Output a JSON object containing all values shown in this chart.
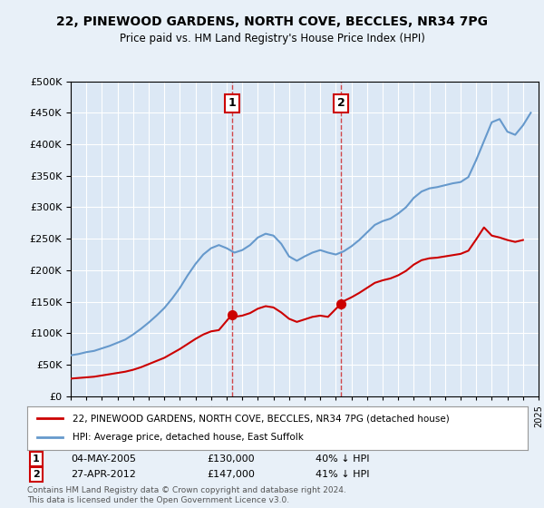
{
  "title": "22, PINEWOOD GARDENS, NORTH COVE, BECCLES, NR34 7PG",
  "subtitle": "Price paid vs. HM Land Registry's House Price Index (HPI)",
  "background_color": "#e8f0f8",
  "plot_bg_color": "#dce8f5",
  "hpi_years": [
    1995,
    1995.5,
    1996,
    1996.5,
    1997,
    1997.5,
    1998,
    1998.5,
    1999,
    1999.5,
    2000,
    2000.5,
    2001,
    2001.5,
    2002,
    2002.5,
    2003,
    2003.5,
    2004,
    2004.5,
    2005,
    2005.5,
    2006,
    2006.5,
    2007,
    2007.5,
    2008,
    2008.5,
    2009,
    2009.5,
    2010,
    2010.5,
    2011,
    2011.5,
    2012,
    2012.5,
    2013,
    2013.5,
    2014,
    2014.5,
    2015,
    2015.5,
    2016,
    2016.5,
    2017,
    2017.5,
    2018,
    2018.5,
    2019,
    2019.5,
    2020,
    2020.5,
    2021,
    2021.5,
    2022,
    2022.5,
    2023,
    2023.5,
    2024,
    2024.5
  ],
  "hpi_values": [
    65000,
    67000,
    70000,
    72000,
    76000,
    80000,
    85000,
    90000,
    98000,
    107000,
    117000,
    128000,
    140000,
    155000,
    172000,
    192000,
    210000,
    225000,
    235000,
    240000,
    235000,
    228000,
    232000,
    240000,
    252000,
    258000,
    255000,
    242000,
    222000,
    215000,
    222000,
    228000,
    232000,
    228000,
    225000,
    230000,
    238000,
    248000,
    260000,
    272000,
    278000,
    282000,
    290000,
    300000,
    315000,
    325000,
    330000,
    332000,
    335000,
    338000,
    340000,
    348000,
    375000,
    405000,
    435000,
    440000,
    420000,
    415000,
    430000,
    450000
  ],
  "property_years": [
    1995,
    1995.5,
    1996,
    1996.5,
    1997,
    1997.5,
    1998,
    1998.5,
    1999,
    1999.5,
    2000,
    2000.5,
    2001,
    2001.5,
    2002,
    2002.5,
    2003,
    2003.5,
    2004,
    2004.5,
    2005.35,
    2005.5,
    2006,
    2006.5,
    2007,
    2007.5,
    2008,
    2008.5,
    2009,
    2009.5,
    2010,
    2010.5,
    2011,
    2011.5,
    2012.33,
    2012.5,
    2013,
    2013.5,
    2014,
    2014.5,
    2015,
    2015.5,
    2016,
    2016.5,
    2017,
    2017.5,
    2018,
    2018.5,
    2019,
    2019.5,
    2020,
    2020.5,
    2021,
    2021.5,
    2022,
    2022.5,
    2023,
    2023.5,
    2024
  ],
  "property_values": [
    28000,
    29000,
    30000,
    31000,
    33000,
    35000,
    37000,
    39000,
    42000,
    46000,
    51000,
    56000,
    61000,
    68000,
    75000,
    83000,
    91000,
    98000,
    103000,
    105000,
    130000,
    126000,
    128000,
    132000,
    139000,
    143000,
    141000,
    133000,
    123000,
    118000,
    122000,
    126000,
    128000,
    126000,
    147000,
    151000,
    157000,
    164000,
    172000,
    180000,
    184000,
    187000,
    192000,
    199000,
    209000,
    216000,
    219000,
    220000,
    222000,
    224000,
    226000,
    231000,
    249000,
    268000,
    255000,
    252000,
    248000,
    245000,
    248000
  ],
  "transaction1_year": 2005.35,
  "transaction1_value": 130000,
  "transaction1_label": "1",
  "transaction1_date": "04-MAY-2005",
  "transaction1_price": "£130,000",
  "transaction1_hpi": "40% ↓ HPI",
  "transaction2_year": 2012.33,
  "transaction2_value": 147000,
  "transaction2_label": "2",
  "transaction2_date": "27-APR-2012",
  "transaction2_price": "£147,000",
  "transaction2_hpi": "41% ↓ HPI",
  "legend_property": "22, PINEWOOD GARDENS, NORTH COVE, BECCLES, NR34 7PG (detached house)",
  "legend_hpi": "HPI: Average price, detached house, East Suffolk",
  "footer": "Contains HM Land Registry data © Crown copyright and database right 2024.\nThis data is licensed under the Open Government Licence v3.0.",
  "xmin": 1995,
  "xmax": 2025,
  "ymin": 0,
  "ymax": 500000,
  "yticks": [
    0,
    50000,
    100000,
    150000,
    200000,
    250000,
    300000,
    350000,
    400000,
    450000,
    500000
  ],
  "property_color": "#cc0000",
  "hpi_color": "#6699cc",
  "marker_color": "#cc0000",
  "vline_color": "#cc0000",
  "marker_box_color": "#cc0000"
}
